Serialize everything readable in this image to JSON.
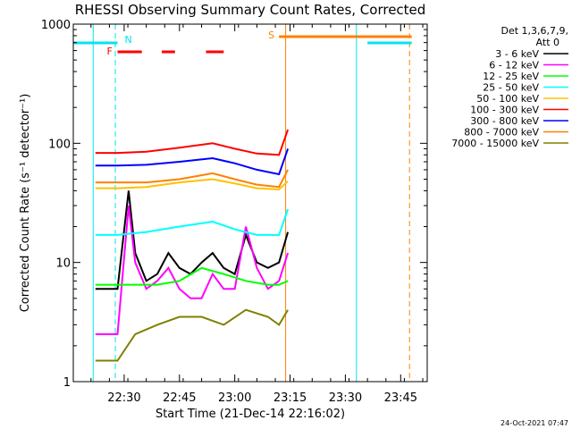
{
  "chart_data": {
    "type": "line",
    "title": "RHESSI Observing Summary Count Rates, Corrected",
    "xlabel": "Start Time (21-Dec-14 22:16:02)",
    "ylabel": "Corrected Count Rate (s⁻¹ detector⁻¹)",
    "y_scale": "log",
    "ylim": [
      1,
      1000
    ],
    "xlim_minutes": [
      22.27,
      23.87
    ],
    "x_ticks": [
      "22:30",
      "22:45",
      "23:00",
      "23:15",
      "23:30",
      "23:45"
    ],
    "y_ticks": [
      "1",
      "10",
      "100",
      "1000"
    ],
    "legend_title": "Det 1,3,6,7,9,",
    "legend_subtitle": "Att 0",
    "legend_position": "right",
    "timestamp": "24-Oct-2021 07:47",
    "flags": [
      {
        "label": "N",
        "color": "#00e5ee",
        "segments": [
          [
            22.27,
            22.47
          ],
          [
            23.6,
            23.8
          ]
        ]
      },
      {
        "label": "F",
        "color": "#ff0000",
        "segments": [
          [
            22.47,
            22.58
          ],
          [
            22.67,
            22.73
          ],
          [
            22.87,
            22.95
          ]
        ]
      },
      {
        "label": "S",
        "color": "#ff8000",
        "segments": [
          [
            23.2,
            23.8
          ]
        ]
      }
    ],
    "markers": [
      {
        "x": 22.36,
        "color": "#00e5ee",
        "style": "solid"
      },
      {
        "x": 22.46,
        "color": "#00e5ee",
        "style": "dashed"
      },
      {
        "x": 23.23,
        "color": "#ff8000",
        "style": "solid"
      },
      {
        "x": 23.55,
        "color": "#00e5ee",
        "style": "solid"
      },
      {
        "x": 23.79,
        "color": "#ff8000",
        "style": "dashed"
      }
    ],
    "series": [
      {
        "name": "3 - 6 keV",
        "color": "#000000",
        "x": [
          22.37,
          22.47,
          22.52,
          22.55,
          22.6,
          22.65,
          22.7,
          22.75,
          22.8,
          22.85,
          22.9,
          22.95,
          23.0,
          23.05,
          23.1,
          23.15,
          23.2,
          23.24
        ],
        "values": [
          6,
          6,
          40,
          12,
          7,
          8,
          12,
          9,
          8,
          10,
          12,
          9,
          8,
          17,
          10,
          9,
          10,
          18
        ]
      },
      {
        "name": "6 - 12 keV",
        "color": "#ff00ff",
        "x": [
          22.37,
          22.47,
          22.52,
          22.55,
          22.6,
          22.65,
          22.7,
          22.75,
          22.8,
          22.85,
          22.9,
          22.95,
          23.0,
          23.05,
          23.1,
          23.15,
          23.2,
          23.24
        ],
        "values": [
          2.5,
          2.5,
          30,
          10,
          6,
          7,
          9,
          6,
          5,
          5,
          8,
          6,
          6,
          20,
          9,
          6,
          7,
          12
        ]
      },
      {
        "name": "12 - 25 keV",
        "color": "#00ff00",
        "x": [
          22.37,
          22.47,
          22.55,
          22.65,
          22.75,
          22.85,
          22.95,
          23.05,
          23.15,
          23.2,
          23.24
        ],
        "values": [
          6.5,
          6.5,
          6.5,
          6.5,
          7,
          9,
          8,
          7,
          6.5,
          6.5,
          7
        ]
      },
      {
        "name": "25 - 50 keV",
        "color": "#00ffff",
        "x": [
          22.37,
          22.47,
          22.6,
          22.75,
          22.9,
          23.0,
          23.1,
          23.2,
          23.24
        ],
        "values": [
          17,
          17,
          18,
          20,
          22,
          19,
          17,
          17,
          28
        ]
      },
      {
        "name": "50 - 100 keV",
        "color": "#ffc000",
        "x": [
          22.37,
          22.47,
          22.6,
          22.75,
          22.9,
          23.0,
          23.1,
          23.2,
          23.24
        ],
        "values": [
          42,
          42,
          43,
          47,
          50,
          46,
          42,
          41,
          48
        ]
      },
      {
        "name": "100 - 300 keV",
        "color": "#ff0000",
        "x": [
          22.37,
          22.47,
          22.6,
          22.75,
          22.9,
          23.0,
          23.1,
          23.2,
          23.24
        ],
        "values": [
          83,
          83,
          85,
          92,
          100,
          90,
          82,
          80,
          130
        ]
      },
      {
        "name": "300 - 800 keV",
        "color": "#0000ff",
        "x": [
          22.37,
          22.47,
          22.6,
          22.75,
          22.9,
          23.0,
          23.1,
          23.2,
          23.24
        ],
        "values": [
          65,
          65,
          66,
          70,
          75,
          68,
          60,
          55,
          90
        ]
      },
      {
        "name": "800 - 7000 keV",
        "color": "#ff8000",
        "x": [
          22.37,
          22.47,
          22.6,
          22.75,
          22.9,
          23.0,
          23.1,
          23.2,
          23.24
        ],
        "values": [
          47,
          47,
          47,
          50,
          56,
          50,
          45,
          43,
          60
        ]
      },
      {
        "name": "7000 - 15000 keV",
        "color": "#808000",
        "x": [
          22.37,
          22.47,
          22.55,
          22.65,
          22.75,
          22.85,
          22.95,
          23.05,
          23.15,
          23.2,
          23.24
        ],
        "values": [
          1.5,
          1.5,
          2.5,
          3,
          3.5,
          3.5,
          3,
          4,
          3.5,
          3,
          4
        ]
      }
    ]
  }
}
